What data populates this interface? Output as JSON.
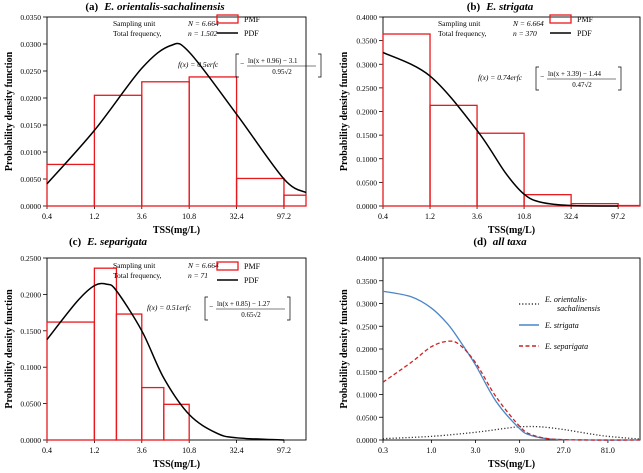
{
  "chart_data": [
    {
      "panel": "a",
      "type": "bar",
      "title": "(a)  E.  orientalis-sachalinensis",
      "title_prefix": "(a)",
      "title_species": "E.  orientalis-sachalinensis",
      "xlabel": "TSS(mg/L)",
      "ylabel": "Probability density function",
      "x_scale": "log",
      "xlim": [
        0.4,
        162
      ],
      "xticks": [
        0.4,
        1.2,
        3.6,
        10.8,
        32.4,
        97.2
      ],
      "xtick_labels": [
        "0.4",
        "1.2",
        "3.6",
        "10.8",
        "32.4",
        "97.2"
      ],
      "ylim": [
        0,
        0.035
      ],
      "yticks": [
        "0.0000",
        "0.0050",
        "0.0100",
        "0.0150",
        "0.0200",
        "0.0250",
        "0.0300",
        "0.0350"
      ],
      "bin_edges": [
        0.4,
        1.2,
        3.6,
        10.8,
        32.4,
        97.2,
        162
      ],
      "values": [
        0.0077,
        0.0205,
        0.023,
        0.0239,
        0.0051,
        0.002
      ],
      "pdf_curve": {
        "x": [
          0.4,
          1.2,
          3.6,
          7,
          10.8,
          32.4,
          97.2,
          162
        ],
        "y": [
          0.0041,
          0.014,
          0.0255,
          0.0297,
          0.0285,
          0.017,
          0.005,
          0.0025
        ]
      },
      "info": {
        "sampling_label": "Sampling unit",
        "n_sampling": "N = 6.664",
        "freq_label": "Total frequency,",
        "n_total": "n = 1.502"
      },
      "formula": {
        "lhs": "f(x) = 0.5erfc",
        "num": "ln(x + 0.96) − 3.1",
        "den": "0.95√2"
      },
      "legend": [
        "PMF",
        "PDF"
      ],
      "legend_position": "top-right",
      "grid": false
    },
    {
      "panel": "b",
      "type": "bar",
      "title": "(b)  E.  strigata",
      "title_prefix": "(b)",
      "title_species": "E.  strigata",
      "xlabel": "TSS(mg/L)",
      "ylabel": "Probability density function",
      "x_scale": "log",
      "xlim": [
        0.4,
        162
      ],
      "xticks": [
        0.4,
        1.2,
        3.6,
        10.8,
        32.4,
        97.2
      ],
      "xtick_labels": [
        "0.4",
        "1.2",
        "3.6",
        "10.8",
        "32.4",
        "97.2"
      ],
      "ylim": [
        0,
        0.4
      ],
      "yticks": [
        "0.0000",
        "0.0500",
        "0.1000",
        "0.1500",
        "0.2000",
        "0.2500",
        "0.3000",
        "0.3500",
        "0.4000"
      ],
      "bin_edges": [
        0.4,
        1.2,
        3.6,
        10.8,
        32.4,
        97.2,
        162
      ],
      "values": [
        0.364,
        0.213,
        0.154,
        0.024,
        0.005,
        0.001
      ],
      "pdf_curve": {
        "x": [
          0.4,
          1.2,
          3.6,
          7,
          10.8,
          16,
          32.4,
          97.2
        ],
        "y": [
          0.325,
          0.275,
          0.16,
          0.07,
          0.025,
          0.008,
          0.001,
          0.0
        ]
      },
      "info": {
        "sampling_label": "Sampling unit",
        "n_sampling": "N = 6.664",
        "freq_label": "Total frequency,",
        "n_total": "n = 370"
      },
      "formula": {
        "lhs": "f(x) = 0.74erfc",
        "num": "ln(x + 3.39) − 1.44",
        "den": "0.47√2"
      },
      "legend": [
        "PMF",
        "PDF"
      ],
      "legend_position": "top-right",
      "grid": false
    },
    {
      "panel": "c",
      "type": "bar",
      "title": "(c)  E.  separigata",
      "title_prefix": "(c)",
      "title_species": "E.  separigata",
      "xlabel": "TSS(mg/L)",
      "ylabel": "Probability density function",
      "x_scale": "log",
      "xlim": [
        0.4,
        162
      ],
      "xticks": [
        0.4,
        1.2,
        3.6,
        10.8,
        32.4,
        97.2
      ],
      "xtick_labels": [
        "0.4",
        "1.2",
        "3.6",
        "10.8",
        "32.4",
        "97.2"
      ],
      "ylim": [
        0,
        0.25
      ],
      "yticks": [
        "0.0000",
        "0.0500",
        "0.1000",
        "0.1500",
        "0.2000",
        "0.2500"
      ],
      "bin_edges": [
        0.4,
        1.2,
        2.0,
        3.6,
        6.0,
        10.8
      ],
      "values": [
        0.162,
        0.236,
        0.173,
        0.072,
        0.049
      ],
      "pdf_curve": {
        "x": [
          0.4,
          0.8,
          1.2,
          1.6,
          2.0,
          3.6,
          6.0,
          10.8,
          20,
          32.4,
          97.2
        ],
        "y": [
          0.138,
          0.19,
          0.212,
          0.214,
          0.205,
          0.15,
          0.085,
          0.035,
          0.01,
          0.003,
          0.0
        ]
      },
      "info": {
        "sampling_label": "Sampling unit",
        "n_sampling": "N = 6.664",
        "freq_label": "Total frequency,",
        "n_total": "n = 71"
      },
      "formula": {
        "lhs": "f(x) = 0.51erfc",
        "num": "ln(x + 0.85) − 1.27",
        "den": "0.65√2"
      },
      "legend": [
        "PMF",
        "PDF"
      ],
      "legend_position": "top-right",
      "grid": false
    },
    {
      "panel": "d",
      "type": "line",
      "title": "(d)  all  taxa",
      "title_prefix": "(d)",
      "title_species": "all  taxa",
      "xlabel": "TSS(mg/L)",
      "ylabel": "Probability density function",
      "x_scale": "log",
      "xlim": [
        0.3,
        180
      ],
      "xticks": [
        0.3,
        1.0,
        3.0,
        9.0,
        27.0,
        81.0
      ],
      "xtick_labels": [
        "0.3",
        "1.0",
        "3.0",
        "9.0",
        "27.0",
        "81.0"
      ],
      "ylim": [
        0,
        0.4
      ],
      "yticks": [
        "0.0000",
        "0.0500",
        "0.1000",
        "0.1500",
        "0.2000",
        "0.2500",
        "0.3000",
        "0.3500",
        "0.4000"
      ],
      "series": [
        {
          "name": "E. orientalis-sachalinensis",
          "style": "dotted",
          "color": "#333333",
          "x": [
            0.3,
            1.0,
            3.0,
            6.0,
            9.0,
            15.0,
            27.0,
            50.0,
            81.0,
            180.0
          ],
          "y": [
            0.003,
            0.008,
            0.017,
            0.025,
            0.029,
            0.029,
            0.023,
            0.014,
            0.008,
            0.002
          ]
        },
        {
          "name": "E. strigata",
          "style": "solid",
          "color": "#4a86c8",
          "x": [
            0.3,
            0.6,
            1.0,
            1.5,
            2.0,
            3.0,
            5.0,
            9.0,
            12.0,
            20.0,
            50.0,
            180.0
          ],
          "y": [
            0.327,
            0.315,
            0.29,
            0.255,
            0.22,
            0.165,
            0.085,
            0.025,
            0.01,
            0.002,
            0.0,
            0.0
          ]
        },
        {
          "name": "E. separigata",
          "style": "dashed",
          "color": "#cc2222",
          "x": [
            0.3,
            0.6,
            1.0,
            1.5,
            2.0,
            3.0,
            5.0,
            9.0,
            12.0,
            20.0,
            50.0,
            180.0
          ],
          "y": [
            0.127,
            0.17,
            0.205,
            0.217,
            0.21,
            0.17,
            0.095,
            0.03,
            0.012,
            0.002,
            0.0,
            0.0
          ]
        }
      ],
      "legend_position": "right",
      "grid": false
    }
  ],
  "colors": {
    "pmf": "#e8191e",
    "pdf": "#000000"
  }
}
